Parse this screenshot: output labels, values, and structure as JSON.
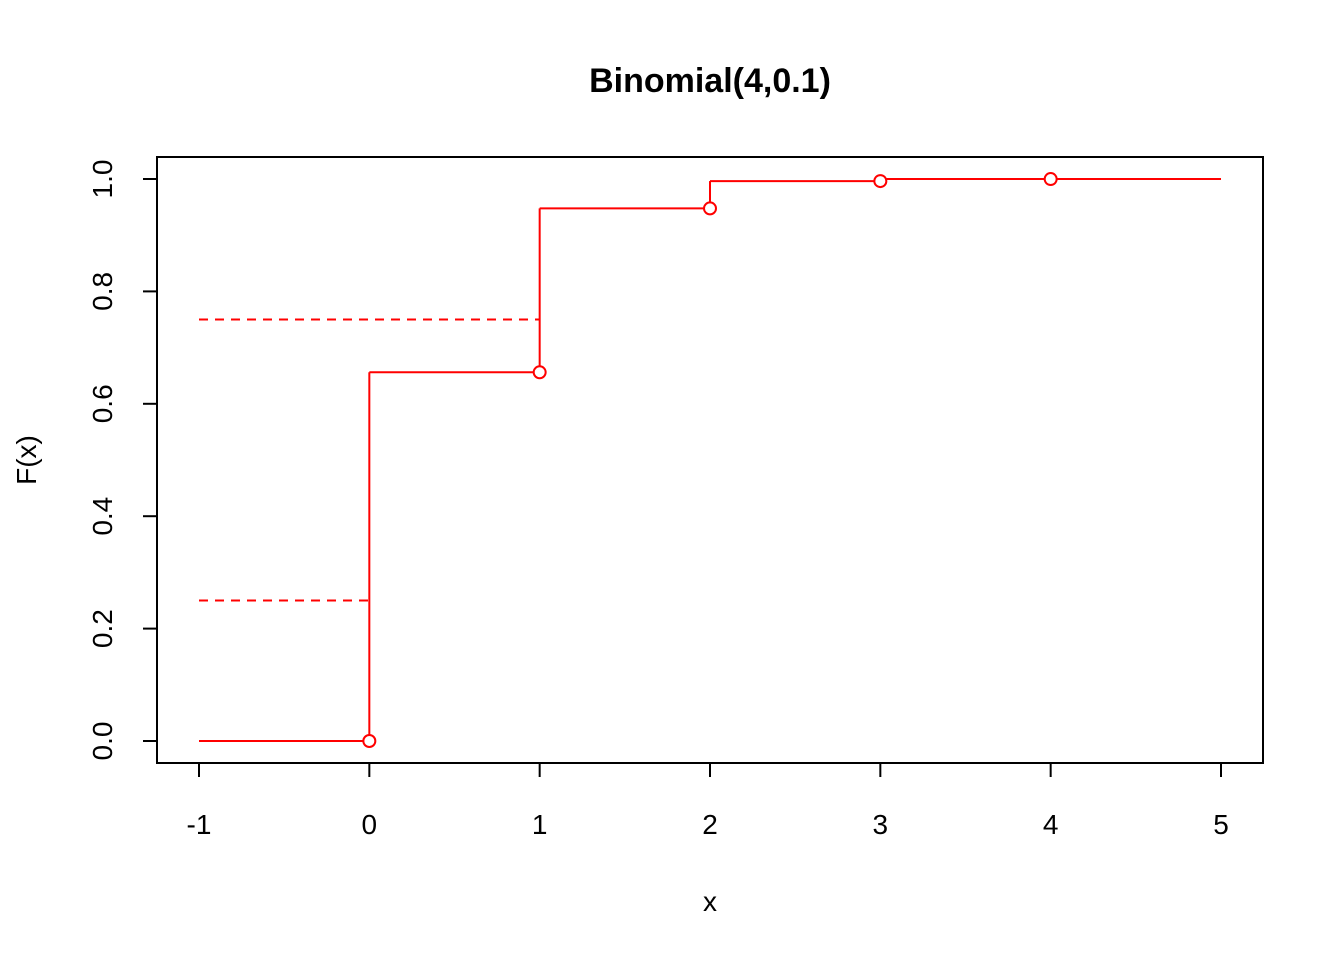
{
  "chart_data": {
    "type": "line",
    "title": "Binomial(4,0.1)",
    "xlabel": "x",
    "ylabel": "F(x)",
    "xlim": [
      -1,
      5
    ],
    "ylim": [
      0,
      1
    ],
    "x_ticks": [
      -1,
      0,
      1,
      2,
      3,
      4,
      5
    ],
    "x_tick_labels": [
      "-1",
      "0",
      "1",
      "2",
      "3",
      "4",
      "5"
    ],
    "y_ticks": [
      0,
      0.2,
      0.4,
      0.6,
      0.8,
      1
    ],
    "y_tick_labels": [
      "0.0",
      "0.2",
      "0.4",
      "0.6",
      "0.8",
      "1.0"
    ],
    "grid": false,
    "legend": "none",
    "color": "#ff0000",
    "steps": [
      {
        "x_start": -1,
        "x_end": 0,
        "y": 0
      },
      {
        "x_start": 0,
        "x_end": 1,
        "y": 0.6561
      },
      {
        "x_start": 1,
        "x_end": 2,
        "y": 0.9477
      },
      {
        "x_start": 2,
        "x_end": 3,
        "y": 0.9963
      },
      {
        "x_start": 3,
        "x_end": 4,
        "y": 0.9999
      },
      {
        "x_start": 4,
        "x_end": 5,
        "y": 1
      }
    ],
    "points": [
      {
        "x": 0,
        "y": 0
      },
      {
        "x": 1,
        "y": 0.6561
      },
      {
        "x": 2,
        "y": 0.9477
      },
      {
        "x": 3,
        "y": 0.9963
      },
      {
        "x": 4,
        "y": 0.9999
      }
    ],
    "dashed_lines": [
      {
        "x_start": -1,
        "x_end": 0,
        "y": 0.25
      },
      {
        "x_start": -1,
        "x_end": 1,
        "y": 0.75
      }
    ]
  }
}
